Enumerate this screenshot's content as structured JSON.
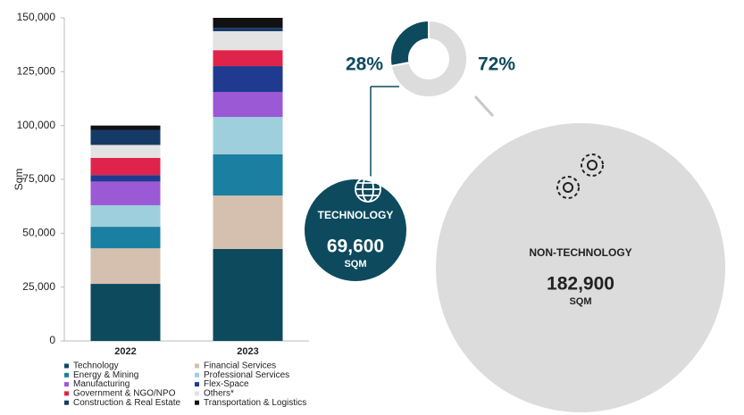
{
  "chart_data": [
    {
      "type": "bar",
      "stacked": true,
      "ylabel": "Sqm",
      "categories": [
        "2022",
        "2023"
      ],
      "series": [
        {
          "name": "Technology",
          "color": "#0d4a5e",
          "values": [
            26500,
            42700
          ]
        },
        {
          "name": "Financial Services",
          "color": "#d5bfae",
          "values": [
            16500,
            24800
          ]
        },
        {
          "name": "Energy & Mining",
          "color": "#1a7fa0",
          "values": [
            10000,
            19100
          ]
        },
        {
          "name": "Professional Services",
          "color": "#9ecfdc",
          "values": [
            10000,
            17400
          ]
        },
        {
          "name": "Manufacturing",
          "color": "#9b59d6",
          "values": [
            11000,
            11600
          ]
        },
        {
          "name": "Flex-Space",
          "color": "#1f3a8f",
          "values": [
            3000,
            12000
          ]
        },
        {
          "name": "Government & NGO/NPO",
          "color": "#e0234a",
          "values": [
            8000,
            7400
          ]
        },
        {
          "name": "Others*",
          "color": "#e3e3e3",
          "values": [
            6000,
            8800
          ]
        },
        {
          "name": "Construction & Real Estate",
          "color": "#163a66",
          "values": [
            7000,
            1600
          ]
        },
        {
          "name": "Transportation & Logistics",
          "color": "#111111",
          "values": [
            2000,
            4600
          ]
        }
      ],
      "ylim": [
        0,
        150000
      ],
      "yticks": [
        0,
        {
          "value": 25000,
          "label": "25,000"
        },
        {
          "value": 50000,
          "label": "50,000"
        },
        {
          "value": 75000,
          "label": "75,000"
        },
        {
          "value": 100000,
          "label": "100,000"
        },
        {
          "value": 125000,
          "label": "125,000"
        },
        {
          "value": 150000,
          "label": "150,000"
        }
      ]
    },
    {
      "type": "donut",
      "values": [
        28,
        72
      ],
      "value_labels": [
        "28%",
        "72%"
      ],
      "colors": [
        "#0d4a5e",
        "#dcdcdc"
      ]
    },
    {
      "type": "bubble",
      "categories": [
        "TECHNOLOGY",
        "NON-TECHNOLOGY"
      ],
      "values": [
        69600,
        182900
      ],
      "value_labels": [
        "69,600",
        "182,900"
      ],
      "unit": "SQM",
      "colors": [
        "#0d4a5e",
        "#dcdcdc"
      ]
    }
  ]
}
